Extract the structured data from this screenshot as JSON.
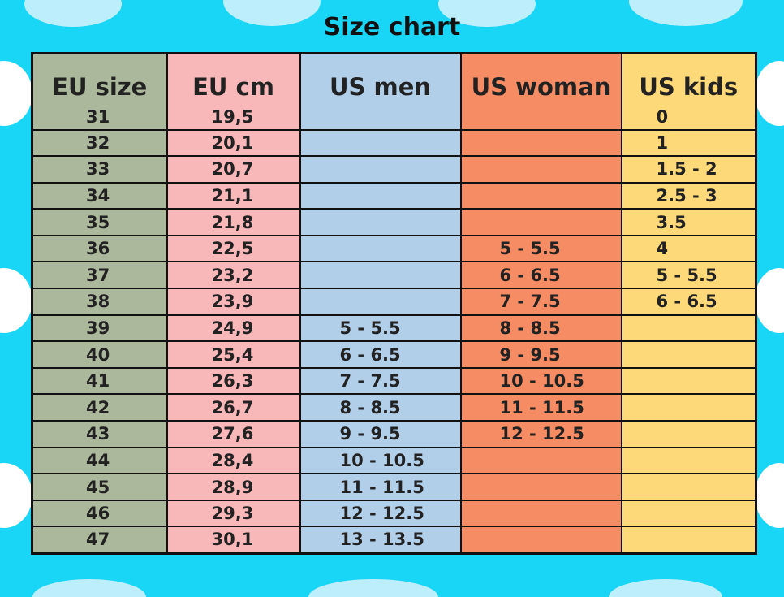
{
  "title": "Size chart",
  "table": {
    "headers": [
      "EU size",
      "EU cm",
      "US men",
      "US woman",
      "US kids"
    ],
    "colors": [
      "#abb89b",
      "#f8b8ba",
      "#b2cfea",
      "#f58c64",
      "#fdd97a"
    ],
    "rows": [
      [
        "31",
        "19,5",
        null,
        null,
        "0"
      ],
      [
        "32",
        "20,1",
        null,
        null,
        "1"
      ],
      [
        "33",
        "20,7",
        null,
        null,
        "1.5 - 2"
      ],
      [
        "34",
        "21,1",
        null,
        null,
        "2.5 - 3"
      ],
      [
        "35",
        "21,8",
        null,
        null,
        "3.5"
      ],
      [
        "36",
        "22,5",
        null,
        "5 - 5.5",
        "4"
      ],
      [
        "37",
        "23,2",
        null,
        "6 - 6.5",
        "5 - 5.5"
      ],
      [
        "38",
        "23,9",
        null,
        "7 - 7.5",
        "6 - 6.5"
      ],
      [
        "39",
        "24,9",
        "5 - 5.5",
        "8 - 8.5",
        null
      ],
      [
        "40",
        "25,4",
        "6 - 6.5",
        "9 - 9.5",
        null
      ],
      [
        "41",
        "26,3",
        "7 - 7.5",
        "10 - 10.5",
        null
      ],
      [
        "42",
        "26,7",
        "8 - 8.5",
        "11 - 11.5",
        null
      ],
      [
        "43",
        "27,6",
        "9 - 9.5",
        "12 - 12.5",
        null
      ],
      [
        "44",
        "28,4",
        "10 - 10.5",
        null,
        null
      ],
      [
        "45",
        "28,9",
        "11 - 11.5",
        null,
        null
      ],
      [
        "46",
        "29,3",
        "12 - 12.5",
        null,
        null
      ],
      [
        "47",
        "30,1",
        "13 - 13.5",
        null,
        null
      ]
    ]
  }
}
